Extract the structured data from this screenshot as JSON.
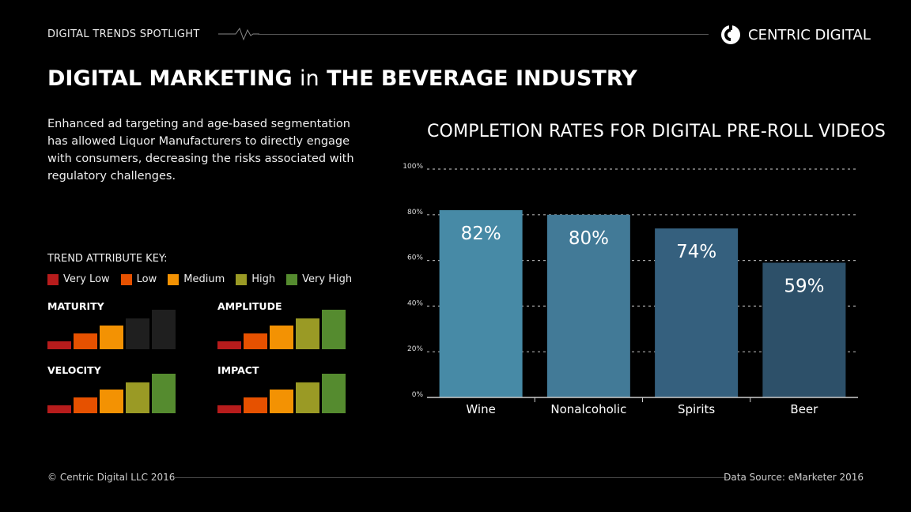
{
  "header": {
    "kicker": "DIGITAL TRENDS SPOTLIGHT",
    "brand": "CENTRIC DIGITAL"
  },
  "title": {
    "bold1": "DIGITAL MARKETING",
    "thin": "in",
    "bold2": "THE BEVERAGE INDUSTRY"
  },
  "description": "Enhanced ad targeting and age-based segmentation has allowed Liquor Manufacturers to directly engage with consumers, decreasing the risks associated with regulatory challenges.",
  "key": {
    "title": "TREND ATTRIBUTE KEY:",
    "levels": [
      {
        "label": "Very Low",
        "color": "#b71c1c"
      },
      {
        "label": "Low",
        "color": "#e65100"
      },
      {
        "label": "Medium",
        "color": "#f39203"
      },
      {
        "label": "High",
        "color": "#9a9a25"
      },
      {
        "label": "Very High",
        "color": "#558b2f"
      }
    ],
    "inactive_color": "#1f1f1f"
  },
  "attributes": [
    {
      "label": "MATURITY",
      "level": 3
    },
    {
      "label": "AMPLITUDE",
      "level": 5
    },
    {
      "label": "VELOCITY",
      "level": 5
    },
    {
      "label": "IMPACT",
      "level": 5
    }
  ],
  "chart_data": {
    "type": "bar",
    "title": "COMPLETION RATES FOR DIGITAL PRE-ROLL VIDEOS",
    "categories": [
      "Wine",
      "Nonalcoholic",
      "Spirits",
      "Beer"
    ],
    "values": [
      82,
      80,
      74,
      59
    ],
    "data_labels": [
      "82%",
      "80%",
      "74%",
      "59%"
    ],
    "colors": [
      "#478aa6",
      "#427a97",
      "#35607e",
      "#2d5069"
    ],
    "ylim": [
      0,
      100
    ],
    "yticks": [
      0,
      20,
      40,
      60,
      80,
      100
    ],
    "ytick_labels": [
      "0%",
      "20%",
      "40%",
      "60%",
      "80%",
      "100%"
    ],
    "grid": "dashed horizontal",
    "xlabel": "",
    "ylabel": ""
  },
  "footer": {
    "copyright": "© Centric Digital LLC 2016",
    "source": "Data Source: eMarketer 2016"
  }
}
